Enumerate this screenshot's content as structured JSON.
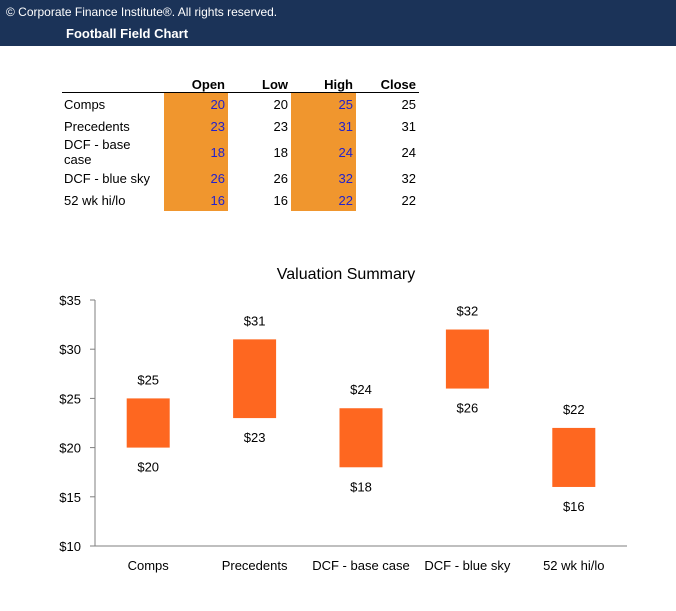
{
  "header": {
    "copyright": "© Corporate Finance Institute®. All rights reserved.",
    "title": "Football Field Chart"
  },
  "table": {
    "columns": [
      "",
      "Open",
      "Low",
      "High",
      "Close"
    ],
    "rows": [
      {
        "name": "Comps",
        "open": "20",
        "low": "20",
        "high": "25",
        "close": "25"
      },
      {
        "name": "Precedents",
        "open": "23",
        "low": "23",
        "high": "31",
        "close": "31"
      },
      {
        "name": "DCF - base case",
        "open": "18",
        "low": "18",
        "high": "24",
        "close": "24"
      },
      {
        "name": "DCF - blue sky",
        "open": "26",
        "low": "26",
        "high": "32",
        "close": "32"
      },
      {
        "name": "52 wk hi/lo",
        "open": "16",
        "low": "16",
        "high": "22",
        "close": "22"
      }
    ]
  },
  "chart_data": {
    "type": "bar",
    "title": "Valuation Summary",
    "categories": [
      "Comps",
      "Precedents",
      "DCF - base case",
      "DCF - blue sky",
      "52 wk hi/lo"
    ],
    "low": [
      20,
      23,
      18,
      26,
      16
    ],
    "high": [
      25,
      31,
      24,
      32,
      22
    ],
    "low_labels": [
      "$20",
      "$23",
      "$18",
      "$26",
      "$16"
    ],
    "high_labels": [
      "$25",
      "$31",
      "$24",
      "$32",
      "$22"
    ],
    "yticks": [
      10,
      15,
      20,
      25,
      30,
      35
    ],
    "ytick_labels": [
      "$10",
      "$15",
      "$20",
      "$25",
      "$30",
      "$35"
    ],
    "ylim": [
      10,
      35
    ],
    "xlabel": "",
    "ylabel": "",
    "grid": false,
    "bar_color": "#fe6720"
  },
  "colors": {
    "header_bg": "#1b3358",
    "input_highlight": "#f0962e",
    "input_text": "#2222cc"
  }
}
